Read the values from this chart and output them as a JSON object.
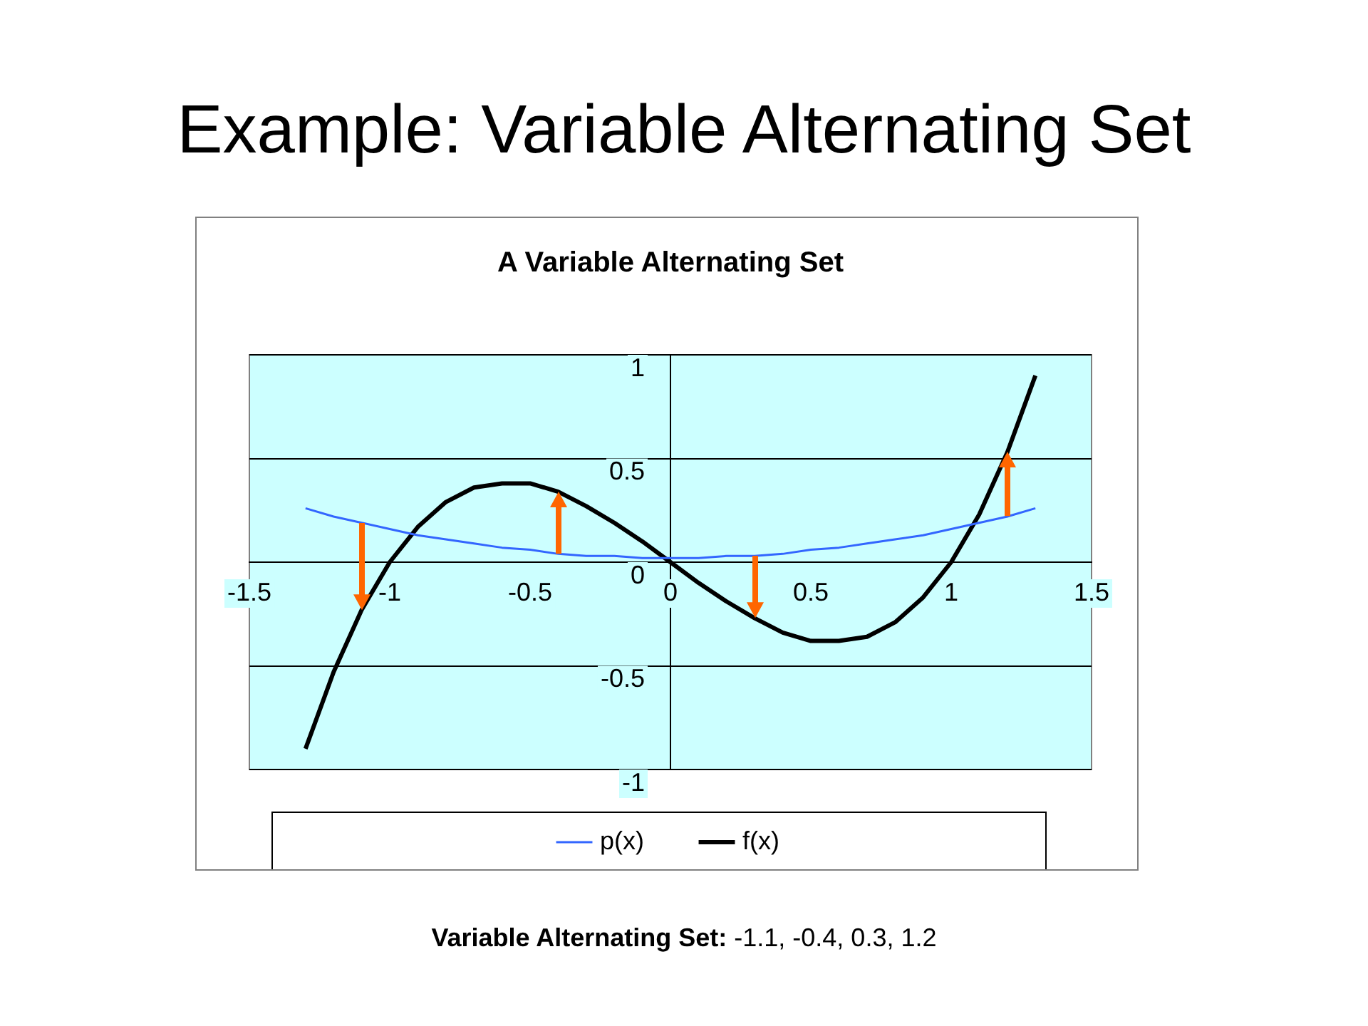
{
  "chart_data": {
    "type": "line",
    "title": "Example: Variable Alternating Set",
    "subtitle": "A Variable Alternating Set",
    "x": [
      -1.3,
      -1.2,
      -1.1,
      -1.0,
      -0.9,
      -0.8,
      -0.7,
      -0.6,
      -0.5,
      -0.4,
      -0.3,
      -0.2,
      -0.1,
      0,
      0.1,
      0.2,
      0.3,
      0.4,
      0.5,
      0.6,
      0.7,
      0.8,
      0.9,
      1.0,
      1.1,
      1.2,
      1.3
    ],
    "series": [
      {
        "name": "p(x)",
        "color": "#3366ff",
        "values": [
          0.26,
          0.22,
          0.19,
          0.16,
          0.13,
          0.11,
          0.09,
          0.07,
          0.06,
          0.04,
          0.03,
          0.03,
          0.02,
          0.02,
          0.02,
          0.03,
          0.03,
          0.04,
          0.06,
          0.07,
          0.09,
          0.11,
          0.13,
          0.16,
          0.19,
          0.22,
          0.26
        ]
      },
      {
        "name": "f(x)",
        "color": "#000000",
        "values": [
          -0.9,
          -0.53,
          -0.23,
          0,
          0.17,
          0.29,
          0.36,
          0.38,
          0.38,
          0.34,
          0.27,
          0.19,
          0.1,
          0,
          -0.1,
          -0.19,
          -0.27,
          -0.34,
          -0.38,
          -0.38,
          -0.36,
          -0.29,
          -0.17,
          0,
          0.23,
          0.53,
          0.9
        ]
      }
    ],
    "xlim": [
      -1.5,
      1.5
    ],
    "xticks": [
      -1.5,
      -1,
      -0.5,
      0,
      0.5,
      1,
      1.5
    ],
    "ylim": [
      -1,
      1
    ],
    "yticks": [
      -1,
      -0.5,
      0,
      0.5,
      1
    ],
    "grid": "y",
    "legend": "bottom",
    "marker": "none",
    "line_style": "solid",
    "annotations": [
      "Variable Alternating Set: -1.1, -0.4, 0.3, 1.2"
    ]
  }
}
